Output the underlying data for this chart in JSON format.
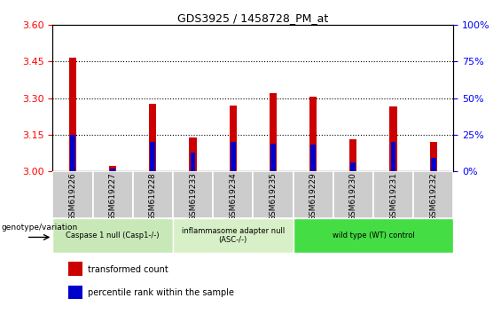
{
  "title": "GDS3925 / 1458728_PM_at",
  "samples": [
    "GSM619226",
    "GSM619227",
    "GSM619228",
    "GSM619233",
    "GSM619234",
    "GSM619235",
    "GSM619229",
    "GSM619230",
    "GSM619231",
    "GSM619232"
  ],
  "transformed_count": [
    3.465,
    3.02,
    3.275,
    3.14,
    3.27,
    3.32,
    3.305,
    3.13,
    3.265,
    3.12
  ],
  "percentile_rank_pct": [
    25,
    2,
    20,
    13,
    20,
    19,
    18,
    6,
    20,
    9
  ],
  "ylim": [
    3.0,
    3.6
  ],
  "yticks": [
    3.0,
    3.15,
    3.3,
    3.45,
    3.6
  ],
  "right_yticks": [
    0,
    25,
    50,
    75,
    100
  ],
  "right_ylim": [
    0,
    100
  ],
  "bar_color": "#CC0000",
  "blue_color": "#0000CC",
  "grid_lines": [
    3.15,
    3.3,
    3.45
  ],
  "groups": [
    {
      "label": "Caspase 1 null (Casp1-/-)",
      "start": 0,
      "end": 3,
      "color": "#c8e8b8"
    },
    {
      "label": "inflammasome adapter null\n(ASC-/-)",
      "start": 3,
      "end": 6,
      "color": "#d8f0c8"
    },
    {
      "label": "wild type (WT) control",
      "start": 6,
      "end": 10,
      "color": "#44dd44"
    }
  ],
  "legend_items": [
    {
      "label": "transformed count",
      "color": "#CC0000"
    },
    {
      "label": "percentile rank within the sample",
      "color": "#0000CC"
    }
  ],
  "genotype_label": "genotype/variation",
  "bar_width": 0.18
}
